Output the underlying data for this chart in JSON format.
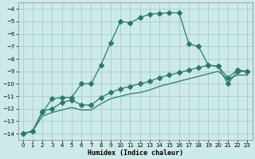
{
  "xlabel": "Humidex (Indice chaleur)",
  "bg_color": "#cdeaea",
  "grid_color": "#aacccc",
  "line_color": "#2a7a6a",
  "xlim": [
    -0.5,
    23.5
  ],
  "ylim": [
    -14.5,
    -3.5
  ],
  "xticks": [
    0,
    1,
    2,
    3,
    4,
    5,
    6,
    7,
    8,
    9,
    10,
    11,
    12,
    13,
    14,
    15,
    16,
    17,
    18,
    19,
    20,
    21,
    22,
    23
  ],
  "yticks": [
    -14,
    -13,
    -12,
    -11,
    -10,
    -9,
    -8,
    -7,
    -6,
    -5,
    -4
  ],
  "curve1_x": [
    0,
    1,
    2,
    3,
    4,
    5,
    6,
    7,
    8,
    9,
    10,
    11,
    12,
    13,
    14,
    15,
    16,
    17,
    18,
    19,
    20,
    21,
    22,
    23
  ],
  "curve1_y": [
    -14.0,
    -13.8,
    -12.3,
    -11.2,
    -11.1,
    -11.1,
    -10.0,
    -10.0,
    -8.5,
    -6.7,
    -5.0,
    -5.1,
    -4.7,
    -4.4,
    -4.35,
    -4.3,
    -4.3,
    -6.8,
    -7.0,
    -8.5,
    -8.6,
    -10.0,
    -9.0,
    -9.0
  ],
  "curve2_x": [
    0,
    1,
    2,
    3,
    4,
    5,
    6,
    7,
    8,
    9,
    10,
    11,
    12,
    13,
    14,
    15,
    16,
    17,
    18,
    19,
    20,
    21,
    22,
    23
  ],
  "curve2_y": [
    -14.0,
    -13.8,
    -12.2,
    -12.0,
    -11.5,
    -11.3,
    -11.7,
    -11.7,
    -11.1,
    -10.7,
    -10.4,
    -10.2,
    -10.0,
    -9.8,
    -9.5,
    -9.3,
    -9.1,
    -8.9,
    -8.7,
    -8.5,
    -8.6,
    -9.5,
    -8.9,
    -9.0
  ],
  "curve3_x": [
    0,
    1,
    2,
    3,
    4,
    5,
    6,
    7,
    8,
    9,
    10,
    11,
    12,
    13,
    14,
    15,
    16,
    17,
    18,
    19,
    20,
    21,
    22,
    23
  ],
  "curve3_y": [
    -14.0,
    -13.8,
    -12.6,
    -12.3,
    -12.1,
    -11.9,
    -12.1,
    -12.1,
    -11.6,
    -11.2,
    -11.0,
    -10.8,
    -10.7,
    -10.5,
    -10.2,
    -10.0,
    -9.8,
    -9.6,
    -9.4,
    -9.2,
    -9.0,
    -9.6,
    -9.3,
    -9.3
  ]
}
